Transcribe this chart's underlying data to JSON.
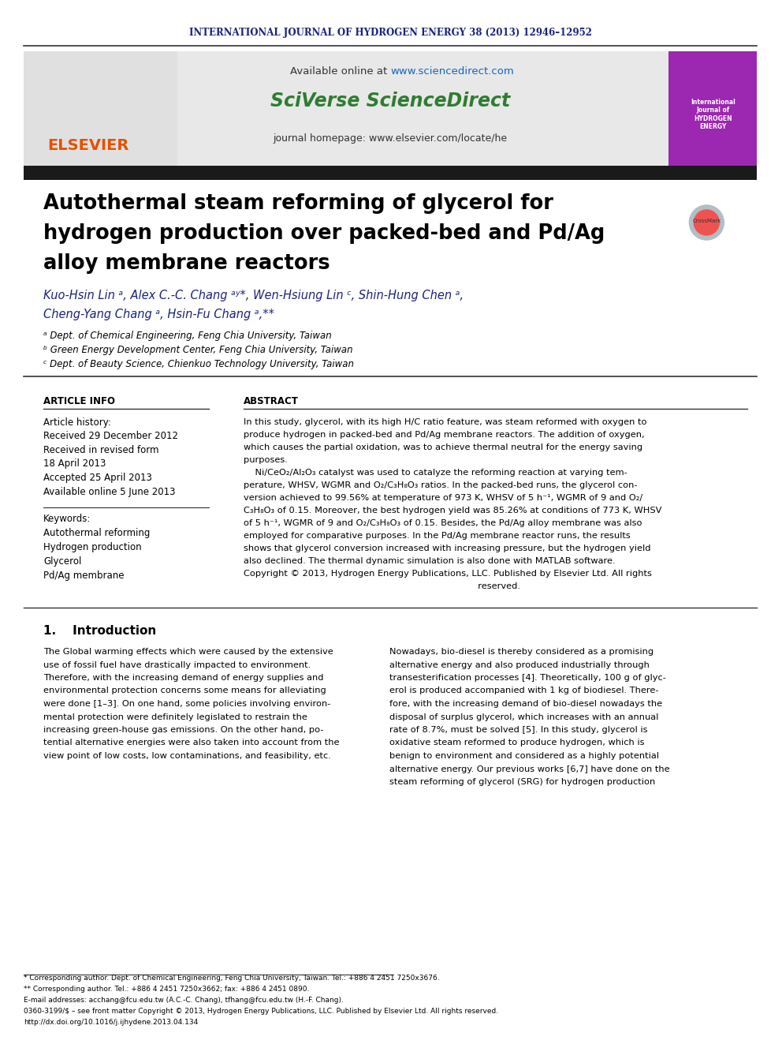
{
  "journal_header": "INTERNATIONAL JOURNAL OF HYDROGEN ENERGY 38 (2013) 12946–12952",
  "journal_header_color": "#1a237e",
  "available_online": "Available online at ",
  "sciencedirect_url": "www.sciencedirect.com",
  "sciencedirect_url_color": "#1565c0",
  "sciverse_text": "SciVerse ScienceDirect",
  "sciverse_color": "#2e7d32",
  "journal_homepage": "journal homepage: www.elsevier.com/locate/he",
  "journal_homepage_color": "#333333",
  "elsevier_color": "#e65100",
  "title_line1": "Autothermal steam reforming of glycerol for",
  "title_line2": "hydrogen production over packed-bed and Pd/Ag",
  "title_line3": "alloy membrane reactors",
  "title_color": "#000000",
  "authors": "Kuo-Hsin Lin ᵃ, Alex C.-C. Chang ᵃʸ*, Wen-Hsiung Lin ᶜ, Shin-Hung Chen ᵃ,",
  "authors2": "Cheng-Yang Chang ᵃ, Hsin-Fu Chang ᵃ,**",
  "authors_color": "#1a237e",
  "affil_a": "ᵃ Dept. of Chemical Engineering, Feng Chia University, Taiwan",
  "affil_b": "ᵇ Green Energy Development Center, Feng Chia University, Taiwan",
  "affil_c": "ᶜ Dept. of Beauty Science, Chienkuo Technology University, Taiwan",
  "affil_color": "#000000",
  "section_article_info": "ARTICLE INFO",
  "section_abstract": "ABSTRACT",
  "article_history_label": "Article history:",
  "received1": "Received 29 December 2012",
  "received_revised": "Received in revised form",
  "revised_date": "18 April 2013",
  "accepted": "Accepted 25 April 2013",
  "available_online2": "Available online 5 June 2013",
  "keywords_label": "Keywords:",
  "keyword1": "Autothermal reforming",
  "keyword2": "Hydrogen production",
  "keyword3": "Glycerol",
  "keyword4": "Pd/Ag membrane",
  "abstract_text": "In this study, glycerol, with its high H/C ratio feature, was steam reformed with oxygen to produce hydrogen in packed-bed and Pd/Ag membrane reactors. The addition of oxygen, which causes the partial oxidation, was to achieve thermal neutral for the energy saving purposes.\n    Ni/CeO₂/Al₂O₃ catalyst was used to catalyze the reforming reaction at varying temperature, WHSV, WGMR and O₂/C₃H₈O₃ ratios. In the packed-bed runs, the glycerol conversion achieved to 99.56% at temperature of 973 K, WHSV of 5 h⁻¹, WGMR of 9 and O₂/C₃H₈O₃ of 0.15. Moreover, the best hydrogen yield was 85.26% at conditions of 773 K, WHSV of 5 h⁻¹, WGMR of 9 and O₂/C₃H₈O₃ of 0.15. Besides, the Pd/Ag alloy membrane was also employed for comparative purposes. In the Pd/Ag membrane reactor runs, the results shows that glycerol conversion increased with increasing pressure, but the hydrogen yield also declined. The thermal dynamic simulation is also done with MATLAB software.\nCopyright © 2013, Hydrogen Energy Publications, LLC. Published by Elsevier Ltd. All rights reserved.",
  "section1_title": "1.    Introduction",
  "intro_col1": "The Global warming effects which were caused by the extensive use of fossil fuel have drastically impacted to environment. Therefore, with the increasing demand of energy supplies and environmental protection concerns some means for alleviating were done [1–3]. On one hand, some policies involving environmental protection were definitely legislated to restrain the increasing green-house gas emissions. On the other hand, potential alternative energies were also taken into account from the view point of low costs, low contaminations, and feasibility, etc.",
  "intro_col2": "Nowadays, bio-diesel is thereby considered as a promising alternative energy and also produced industrially through transesterification processes [4]. Theoretically, 100 g of glycerol is produced accompanied with 1 kg of biodiesel. Therefore, with the increasing demand of bio-diesel nowadays the disposal of surplus glycerol, which increases with an annual rate of 8.7%, must be solved [5]. In this study, glycerol is oxidative steam reformed to produce hydrogen, which is benign to environment and considered as a highly potential alternative energy. Our previous works [6,7] have done on the steam reforming of glycerol (SRG) for hydrogen production",
  "footnote1": "* Corresponding author. Dept. of Chemical Engineering, Feng Chia University, Taiwan. Tel.: +886 4 2451 7250x3676.",
  "footnote2": "** Corresponding author. Tel.: +886 4 2451 7250x3662; fax: +886 4 2451 0890.",
  "footnote3": "E-mail addresses: acchang@fcu.edu.tw (A.C.-C. Chang), tfhang@fcu.edu.tw (H.-F. Chang).",
  "footnote4": "0360-3199/$ – see front matter Copyright © 2013, Hydrogen Energy Publications, LLC. Published by Elsevier Ltd. All rights reserved.",
  "footnote5": "http://dx.doi.org/10.1016/j.ijhydene.2013.04.134",
  "footnote_color": "#000000",
  "bg_color": "#ffffff",
  "header_bg": "#f0f0f0",
  "black_bar_color": "#1a1a1a",
  "section_bg": "#f5f5f5"
}
